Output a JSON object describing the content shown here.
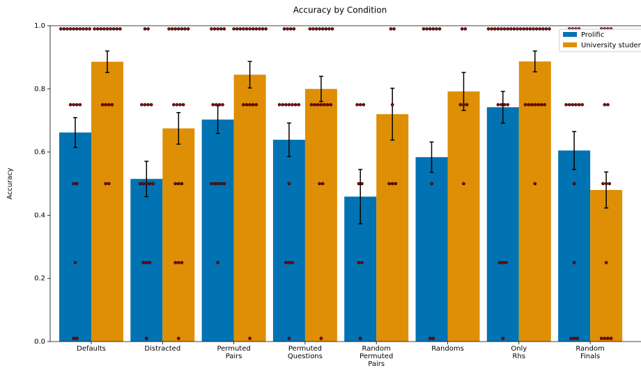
{
  "chart_data": {
    "type": "bar",
    "title": "Accuracy by Condition",
    "y_label": "Accuracy",
    "categories": [
      "Defaults",
      "Distracted",
      "Permuted\nPairs",
      "Permuted\nQuestions",
      "Random\nPermuted\nPairs",
      "Randoms",
      "Only\nRhs",
      "Random\nFinals"
    ],
    "ylim": [
      0,
      1
    ],
    "yticks": [
      {
        "value": 0,
        "label": "0.0"
      },
      {
        "value": 0.2,
        "label": "0.2"
      },
      {
        "value": 0.4,
        "label": "0.4"
      },
      {
        "value": 0.6,
        "label": "0.6"
      },
      {
        "value": 0.8,
        "label": "0.8"
      },
      {
        "value": 1,
        "label": "1.0"
      }
    ],
    "legend": "upper right",
    "series": [
      {
        "name": "Prolific",
        "color": "#0173b2",
        "values": [
          0.662,
          0.515,
          0.703,
          0.639,
          0.459,
          0.584,
          0.742,
          0.605
        ],
        "errors": [
          0.047,
          0.056,
          0.044,
          0.053,
          0.086,
          0.048,
          0.05,
          0.06
        ],
        "points": [
          [
            0.99,
            0.99,
            0.99,
            0.99,
            0.99,
            0.99,
            0.99,
            0.99,
            0.99,
            0.99,
            0.75,
            0.75,
            0.75,
            0.75,
            0.5,
            0.5,
            0.25,
            0.01,
            0.01
          ],
          [
            0.99,
            0.99,
            0.75,
            0.75,
            0.75,
            0.75,
            0.5,
            0.5,
            0.5,
            0.5,
            0.5,
            0.25,
            0.25,
            0.25,
            0.01
          ],
          [
            0.99,
            0.99,
            0.99,
            0.99,
            0.99,
            0.75,
            0.75,
            0.75,
            0.75,
            0.5,
            0.5,
            0.5,
            0.5,
            0.5,
            0.25
          ],
          [
            0.99,
            0.99,
            0.99,
            0.99,
            0.75,
            0.75,
            0.75,
            0.75,
            0.75,
            0.75,
            0.75,
            0.5,
            0.25,
            0.25,
            0.25,
            0.01
          ],
          [
            0.75,
            0.75,
            0.75,
            0.5,
            0.5,
            0.25,
            0.25,
            0.01
          ],
          [
            0.99,
            0.99,
            0.99,
            0.99,
            0.99,
            0.99,
            0.5,
            0.01,
            0.01
          ],
          [
            0.99,
            0.99,
            0.99,
            0.99,
            0.99,
            0.99,
            0.99,
            0.99,
            0.99,
            0.99,
            0.75,
            0.75,
            0.75,
            0.75,
            0.25,
            0.25,
            0.25,
            0.01
          ],
          [
            0.99,
            0.99,
            0.99,
            0.99,
            0.75,
            0.75,
            0.75,
            0.75,
            0.75,
            0.75,
            0.5,
            0.25,
            0.01,
            0.01,
            0.01
          ]
        ]
      },
      {
        "name": "University students",
        "color": "#de8f05",
        "values": [
          0.886,
          0.675,
          0.845,
          0.8,
          0.72,
          0.792,
          0.887,
          0.48
        ],
        "errors": [
          0.034,
          0.05,
          0.042,
          0.04,
          0.082,
          0.06,
          0.033,
          0.057
        ],
        "points": [
          [
            0.99,
            0.99,
            0.99,
            0.99,
            0.99,
            0.99,
            0.99,
            0.99,
            0.99,
            0.75,
            0.75,
            0.75,
            0.75,
            0.5,
            0.5
          ],
          [
            0.99,
            0.99,
            0.99,
            0.99,
            0.99,
            0.99,
            0.99,
            0.75,
            0.75,
            0.75,
            0.75,
            0.5,
            0.5,
            0.5,
            0.25,
            0.25,
            0.25,
            0.01
          ],
          [
            0.99,
            0.99,
            0.99,
            0.99,
            0.99,
            0.99,
            0.99,
            0.99,
            0.99,
            0.99,
            0.99,
            0.75,
            0.75,
            0.75,
            0.75,
            0.75,
            0.01
          ],
          [
            0.99,
            0.99,
            0.99,
            0.99,
            0.99,
            0.99,
            0.99,
            0.99,
            0.75,
            0.75,
            0.75,
            0.75,
            0.75,
            0.75,
            0.75,
            0.5,
            0.5,
            0.01
          ],
          [
            0.99,
            0.99,
            0.75,
            0.5,
            0.5,
            0.5
          ],
          [
            0.99,
            0.99,
            0.75,
            0.75,
            0.75,
            0.5
          ],
          [
            0.99,
            0.99,
            0.99,
            0.99,
            0.99,
            0.99,
            0.99,
            0.99,
            0.99,
            0.99,
            0.75,
            0.75,
            0.75,
            0.75,
            0.75,
            0.75,
            0.75,
            0.5
          ],
          [
            0.99,
            0.99,
            0.99,
            0.99,
            0.75,
            0.75,
            0.5,
            0.5,
            0.5,
            0.25,
            0.01,
            0.01,
            0.01,
            0.01
          ]
        ]
      }
    ]
  }
}
